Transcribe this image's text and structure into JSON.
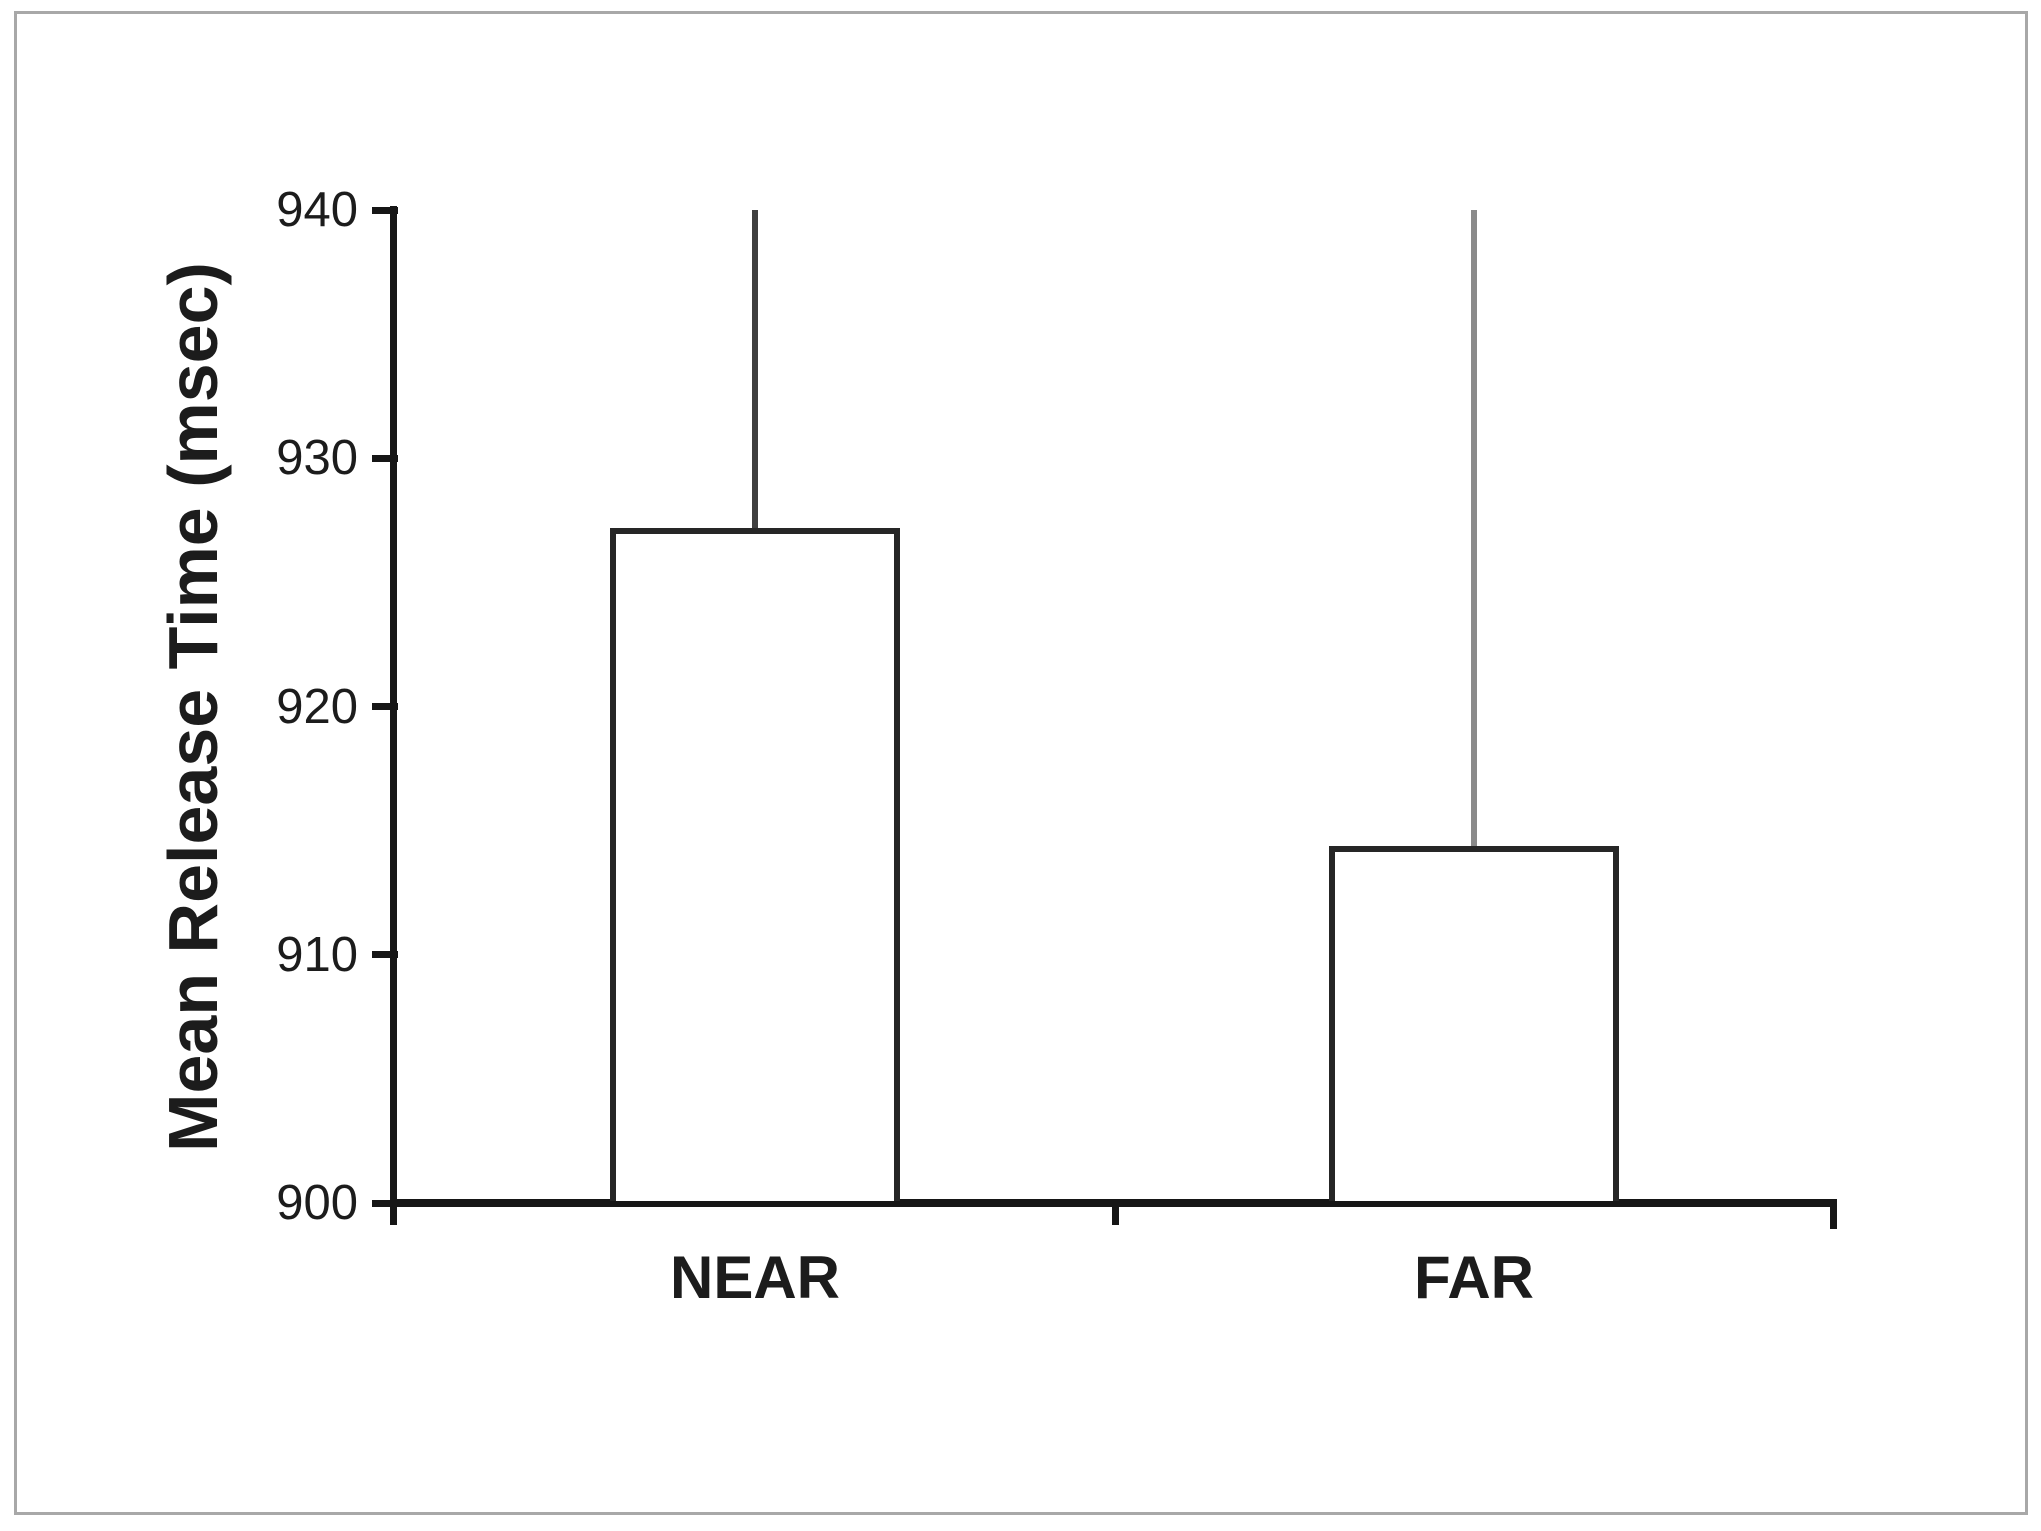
{
  "figure": {
    "background": "#ffffff",
    "border_color": "#a8a8a8"
  },
  "chart_data": {
    "type": "bar",
    "title": "",
    "categories": [
      "NEAR",
      "FAR"
    ],
    "values": [
      927.2,
      914.4
    ],
    "error_bars_upper_reach": [
      940,
      940
    ],
    "xlabel": "",
    "ylabel": "Mean Release Time (msec)",
    "ylim": [
      900,
      940
    ],
    "yticks": [
      900,
      910,
      920,
      930,
      940
    ],
    "grid": false,
    "legend": false,
    "bar_fill": "#ffffff",
    "bar_border_color": "#262626",
    "axis_color": "#161616",
    "error_bar_colors": [
      "#3f3f3f",
      "#8a8a8a"
    ],
    "text_color": "#1c1c1c"
  }
}
